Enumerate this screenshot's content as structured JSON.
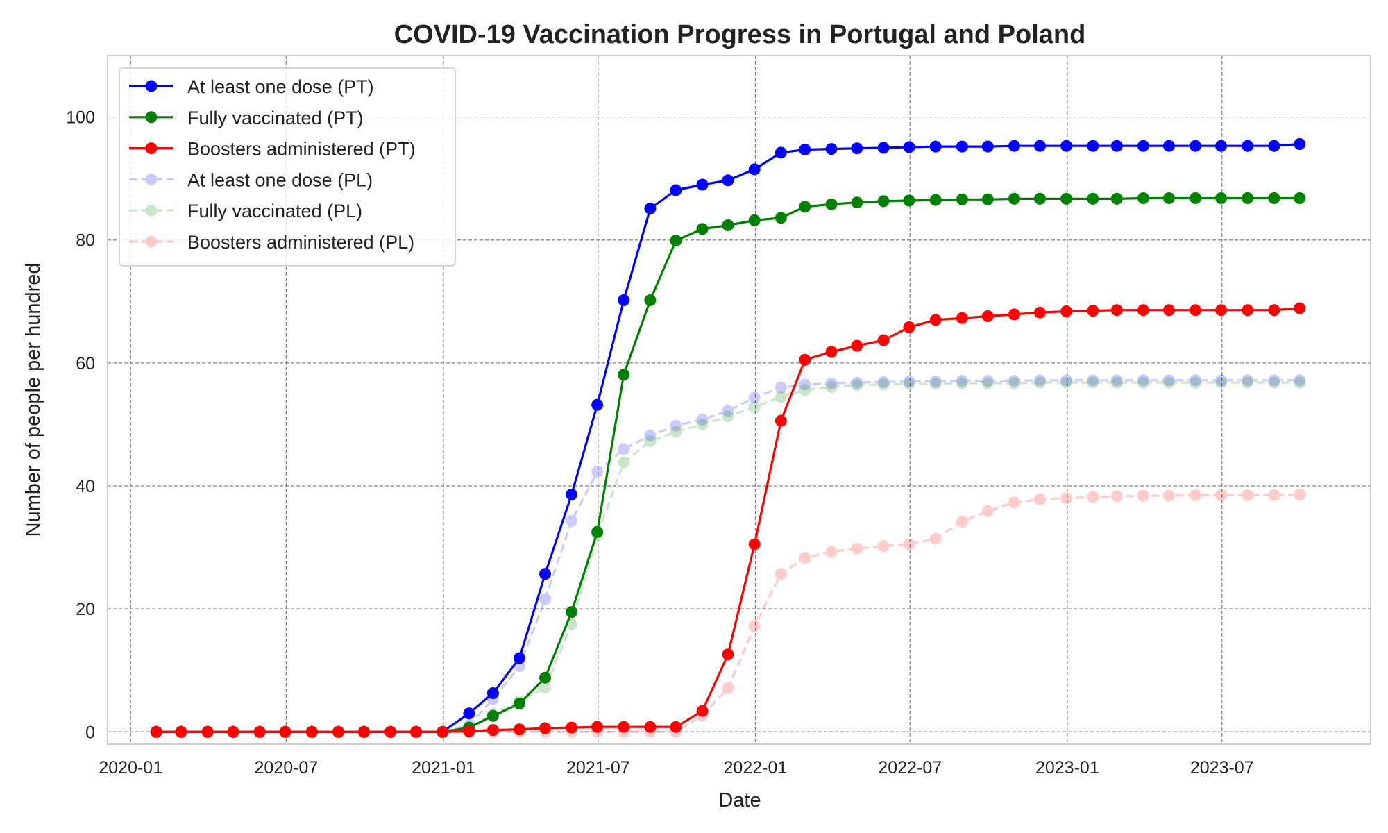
{
  "chart_data": {
    "type": "line",
    "title": "COVID-19 Vaccination Progress in Portugal and Poland",
    "xlabel": "Date",
    "ylabel": "Number of people per hundred",
    "x_ticks": [
      "2020-01",
      "2020-07",
      "2021-01",
      "2021-07",
      "2022-01",
      "2022-07",
      "2023-01",
      "2023-07"
    ],
    "y_ticks": [
      0,
      20,
      40,
      60,
      80,
      100
    ],
    "xlim": [
      "2019-12-05",
      "2023-12-22"
    ],
    "ylim": [
      -2,
      110
    ],
    "grid": true,
    "legend_position": "top-left",
    "x": [
      "2020-01-31",
      "2020-02-29",
      "2020-03-31",
      "2020-04-30",
      "2020-05-31",
      "2020-06-30",
      "2020-07-31",
      "2020-08-31",
      "2020-09-30",
      "2020-10-31",
      "2020-11-30",
      "2020-12-31",
      "2021-01-31",
      "2021-02-28",
      "2021-03-31",
      "2021-04-30",
      "2021-05-31",
      "2021-06-30",
      "2021-07-31",
      "2021-08-31",
      "2021-09-30",
      "2021-10-31",
      "2021-11-30",
      "2021-12-31",
      "2022-01-31",
      "2022-02-28",
      "2022-03-31",
      "2022-04-30",
      "2022-05-31",
      "2022-06-30",
      "2022-07-31",
      "2022-08-31",
      "2022-09-30",
      "2022-10-31",
      "2022-11-30",
      "2022-12-31",
      "2023-01-31",
      "2023-02-28",
      "2023-03-31",
      "2023-04-30",
      "2023-05-31",
      "2023-06-30",
      "2023-07-31",
      "2023-08-31",
      "2023-09-30"
    ],
    "series": [
      {
        "name": "At least one dose (PT)",
        "color": "#0000ff",
        "style": "solid",
        "opacity": 1,
        "values": [
          0,
          0,
          0,
          0,
          0,
          0,
          0,
          0,
          0,
          0,
          0,
          0,
          3.0,
          6.3,
          12.0,
          25.7,
          38.6,
          53.2,
          70.2,
          85.1,
          88.1,
          89.0,
          89.7,
          91.5,
          94.2,
          94.7,
          94.8,
          94.9,
          95.0,
          95.1,
          95.2,
          95.2,
          95.2,
          95.3,
          95.3,
          95.3,
          95.3,
          95.3,
          95.3,
          95.3,
          95.3,
          95.3,
          95.3,
          95.3,
          95.6
        ]
      },
      {
        "name": "Fully vaccinated (PT)",
        "color": "#008000",
        "style": "solid",
        "opacity": 1,
        "values": [
          0,
          0,
          0,
          0,
          0,
          0,
          0,
          0,
          0,
          0,
          0,
          0,
          0.7,
          2.6,
          4.6,
          8.8,
          19.5,
          32.5,
          58.1,
          70.2,
          79.9,
          81.8,
          82.4,
          83.2,
          83.6,
          85.4,
          85.8,
          86.1,
          86.3,
          86.4,
          86.5,
          86.6,
          86.6,
          86.7,
          86.7,
          86.7,
          86.7,
          86.7,
          86.8,
          86.8,
          86.8,
          86.8,
          86.8,
          86.8,
          86.8
        ]
      },
      {
        "name": "Boosters administered (PT)",
        "color": "#ff0000",
        "style": "solid",
        "opacity": 1,
        "values": [
          0,
          0,
          0,
          0,
          0,
          0,
          0,
          0,
          0,
          0,
          0,
          0,
          0.1,
          0.3,
          0.4,
          0.6,
          0.7,
          0.8,
          0.8,
          0.8,
          0.8,
          3.4,
          12.6,
          30.5,
          50.6,
          60.5,
          61.8,
          62.8,
          63.7,
          65.8,
          67.0,
          67.3,
          67.6,
          67.9,
          68.2,
          68.4,
          68.5,
          68.6,
          68.6,
          68.6,
          68.6,
          68.6,
          68.6,
          68.6,
          68.9
        ]
      },
      {
        "name": "At least one dose (PL)",
        "color": "#0000ff",
        "style": "dashed",
        "opacity": 0.2,
        "values": [
          0,
          0,
          0,
          0,
          0,
          0,
          0,
          0,
          0,
          0,
          0,
          0,
          1.1,
          5.3,
          10.7,
          21.6,
          34.3,
          42.3,
          46.0,
          48.2,
          49.8,
          50.8,
          52.2,
          54.4,
          56.0,
          56.5,
          56.7,
          56.8,
          56.9,
          57.0,
          57.0,
          57.1,
          57.1,
          57.1,
          57.2,
          57.2,
          57.2,
          57.2,
          57.2,
          57.2,
          57.2,
          57.2,
          57.2,
          57.2,
          57.2
        ]
      },
      {
        "name": "Fully vaccinated (PL)",
        "color": "#008000",
        "style": "dashed",
        "opacity": 0.2,
        "values": [
          0,
          0,
          0,
          0,
          0,
          0,
          0,
          0,
          0,
          0,
          0,
          0,
          0.6,
          2.9,
          5.0,
          7.2,
          17.5,
          32.0,
          43.8,
          47.3,
          48.8,
          50.0,
          51.3,
          52.8,
          54.5,
          55.6,
          56.1,
          56.4,
          56.5,
          56.6,
          56.6,
          56.7,
          56.7,
          56.7,
          56.8,
          56.8,
          56.8,
          56.8,
          56.8,
          56.8,
          56.8,
          56.8,
          56.8,
          56.8,
          56.8
        ]
      },
      {
        "name": "Boosters administered (PL)",
        "color": "#ff0000",
        "style": "dashed",
        "opacity": 0.2,
        "values": [
          0,
          0,
          0,
          0,
          0,
          0,
          0,
          0,
          0,
          0,
          0,
          0,
          0,
          0,
          0,
          0,
          0,
          0,
          0,
          0,
          0,
          2.7,
          7.1,
          17.2,
          25.7,
          28.3,
          29.3,
          29.8,
          30.2,
          30.5,
          31.4,
          34.2,
          35.9,
          37.3,
          37.8,
          38.0,
          38.2,
          38.3,
          38.4,
          38.4,
          38.5,
          38.5,
          38.5,
          38.5,
          38.6
        ]
      }
    ]
  }
}
